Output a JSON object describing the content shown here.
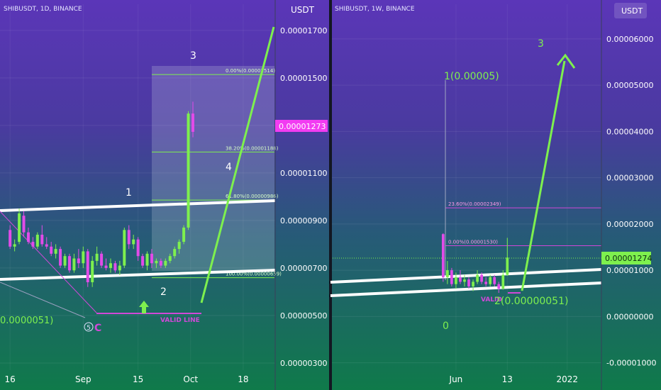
{
  "chart_data": [
    {
      "type": "candlestick",
      "title": "SHIBUSDT, 1D, BINANCE",
      "unit": "USDT",
      "y_ticks": [
        "0.00001700",
        "0.00001500",
        "0.00001300",
        "0.00001100",
        "0.00000900",
        "0.00000700",
        "0.00000500",
        "0.00000300"
      ],
      "y_tick_values": [
        1.7e-05,
        1.5e-05,
        1.3e-05,
        1.1e-05,
        9e-06,
        7e-06,
        5e-06,
        3e-06
      ],
      "ylim": [
        2.7e-06,
        1.81e-05
      ],
      "x_ticks": [
        "16",
        "Sep",
        "15",
        "Oct",
        "18"
      ],
      "x_tick_pos": [
        0,
        16,
        28,
        39.5,
        51
      ],
      "x_range": [
        -2.2,
        58
      ],
      "last_price": "0.00001273",
      "candles": [
        {
          "o": 8.6e-06,
          "h": 8.8e-06,
          "l": 7.8e-06,
          "c": 7.9e-06
        },
        {
          "o": 7.9e-06,
          "h": 8.2e-06,
          "l": 7.7e-06,
          "c": 8e-06
        },
        {
          "o": 8.1e-06,
          "h": 9.5e-06,
          "l": 8e-06,
          "c": 9.3e-06
        },
        {
          "o": 9.2e-06,
          "h": 9.4e-06,
          "l": 8.3e-06,
          "c": 8.5e-06
        },
        {
          "o": 8.5e-06,
          "h": 8.7e-06,
          "l": 8e-06,
          "c": 8.1e-06
        },
        {
          "o": 8.1e-06,
          "h": 8.3e-06,
          "l": 7.8e-06,
          "c": 7.9e-06
        },
        {
          "o": 7.9e-06,
          "h": 8.5e-06,
          "l": 7.8e-06,
          "c": 8.4e-06
        },
        {
          "o": 8.4e-06,
          "h": 8.8e-06,
          "l": 7.9e-06,
          "c": 8e-06
        },
        {
          "o": 8e-06,
          "h": 8.3e-06,
          "l": 7.8e-06,
          "c": 7.9e-06
        },
        {
          "o": 7.9e-06,
          "h": 8.1e-06,
          "l": 7.5e-06,
          "c": 7.6e-06
        },
        {
          "o": 7.6e-06,
          "h": 8e-06,
          "l": 7.4e-06,
          "c": 7.8e-06
        },
        {
          "o": 7.8e-06,
          "h": 7.9e-06,
          "l": 7e-06,
          "c": 7.1e-06
        },
        {
          "o": 7.1e-06,
          "h": 7.6e-06,
          "l": 7e-06,
          "c": 7.5e-06
        },
        {
          "o": 7.5e-06,
          "h": 7.6e-06,
          "l": 6.8e-06,
          "c": 6.9e-06
        },
        {
          "o": 6.9e-06,
          "h": 7.6e-06,
          "l": 6.8e-06,
          "c": 7.4e-06
        },
        {
          "o": 7.4e-06,
          "h": 7.8e-06,
          "l": 7e-06,
          "c": 7.2e-06
        },
        {
          "o": 7.2e-06,
          "h": 7.9e-06,
          "l": 7e-06,
          "c": 7.7e-06
        },
        {
          "o": 7.7e-06,
          "h": 7.8e-06,
          "l": 6.2e-06,
          "c": 6.4e-06
        },
        {
          "o": 6.4e-06,
          "h": 7.5e-06,
          "l": 6.2e-06,
          "c": 7.3e-06
        },
        {
          "o": 7.3e-06,
          "h": 7.9e-06,
          "l": 7.1e-06,
          "c": 7.6e-06
        },
        {
          "o": 7.6e-06,
          "h": 7.7e-06,
          "l": 7e-06,
          "c": 7.1e-06
        },
        {
          "o": 7.1e-06,
          "h": 7.4e-06,
          "l": 6.9e-06,
          "c": 7e-06
        },
        {
          "o": 7e-06,
          "h": 7.4e-06,
          "l": 6.8e-06,
          "c": 7.2e-06
        },
        {
          "o": 7.2e-06,
          "h": 7.3e-06,
          "l": 6.8e-06,
          "c": 6.9e-06
        },
        {
          "o": 6.9e-06,
          "h": 7.3e-06,
          "l": 6.7e-06,
          "c": 7.1e-06
        },
        {
          "o": 7.1e-06,
          "h": 8.7e-06,
          "l": 7e-06,
          "c": 8.6e-06
        },
        {
          "o": 8.6e-06,
          "h": 8.8e-06,
          "l": 7.8e-06,
          "c": 8e-06
        },
        {
          "o": 8e-06,
          "h": 8.4e-06,
          "l": 7.8e-06,
          "c": 8.2e-06
        },
        {
          "o": 8.2e-06,
          "h": 8.3e-06,
          "l": 7.3e-06,
          "c": 7.5e-06
        },
        {
          "o": 7.5e-06,
          "h": 7.6e-06,
          "l": 7e-06,
          "c": 7.1e-06
        },
        {
          "o": 7.1e-06,
          "h": 7.7e-06,
          "l": 6.9e-06,
          "c": 7.6e-06
        },
        {
          "o": 7.6e-06,
          "h": 7.8e-06,
          "l": 7e-06,
          "c": 7.2e-06
        },
        {
          "o": 7.2e-06,
          "h": 7.4e-06,
          "l": 7e-06,
          "c": 7.3e-06
        },
        {
          "o": 7.3e-06,
          "h": 7.4e-06,
          "l": 7e-06,
          "c": 7.1e-06
        },
        {
          "o": 7.1e-06,
          "h": 7.4e-06,
          "l": 7e-06,
          "c": 7.3e-06
        },
        {
          "o": 7.3e-06,
          "h": 7.6e-06,
          "l": 7.2e-06,
          "c": 7.5e-06
        },
        {
          "o": 7.5e-06,
          "h": 7.9e-06,
          "l": 7.4e-06,
          "c": 7.8e-06
        },
        {
          "o": 7.8e-06,
          "h": 8.2e-06,
          "l": 7.6e-06,
          "c": 8.1e-06
        },
        {
          "o": 8.1e-06,
          "h": 8.8e-06,
          "l": 8e-06,
          "c": 8.7e-06
        },
        {
          "o": 8.7e-06,
          "h": 1.36e-05,
          "l": 8.6e-06,
          "c": 1.35e-05
        },
        {
          "o": 1.35e-05,
          "h": 1.4e-05,
          "l": 1.25e-05,
          "c": 1.273e-05
        }
      ],
      "fib_levels": [
        {
          "label": "0.00%(0.00001514)",
          "value": 1.514e-05
        },
        {
          "label": "38.20%(0.00001188)",
          "value": 1.188e-05
        },
        {
          "label": "61.80%(0.00000986)",
          "value": 9.86e-06
        },
        {
          "label": "100.00%(0.00000659)",
          "value": 6.59e-06
        }
      ],
      "annotations": {
        "wave_1": "1",
        "wave_2": "2",
        "wave_3": "3",
        "wave_4": "4",
        "wave_5c": "5",
        "wave_5c_suffix": "C",
        "left_price": "0.0000051)",
        "valid_line": "VALID LINE"
      }
    },
    {
      "type": "candlestick",
      "title": "SHIBUSDT, 1W, BINANCE",
      "unit": "USDT",
      "y_ticks": [
        "0.00006000",
        "0.00005000",
        "0.00004000",
        "0.00003000",
        "0.00002000",
        "0.00001000",
        "0.00000000",
        "-0.00001000"
      ],
      "y_tick_values": [
        6e-05,
        5e-05,
        4e-05,
        3e-05,
        2e-05,
        1e-05,
        0,
        -1e-05
      ],
      "ylim": [
        -1.16e-05,
        6.75e-05
      ],
      "x_ticks": [
        "Jun",
        "13",
        "2022"
      ],
      "x_tick_pos": [
        3,
        15,
        29
      ],
      "x_range": [
        -26,
        37
      ],
      "last_price": "0.00001274",
      "candles": [
        {
          "o": 1.78e-05,
          "h": 1.8e-05,
          "l": 7.5e-06,
          "c": 8.5e-06
        },
        {
          "o": 8.5e-06,
          "h": 1.2e-05,
          "l": 7e-06,
          "c": 1e-05
        },
        {
          "o": 1e-05,
          "h": 1.05e-05,
          "l": 6.5e-06,
          "c": 7e-06
        },
        {
          "o": 7e-06,
          "h": 9.5e-06,
          "l": 6e-06,
          "c": 8.5e-06
        },
        {
          "o": 8.5e-06,
          "h": 1e-05,
          "l": 7e-06,
          "c": 7.5e-06
        },
        {
          "o": 7.5e-06,
          "h": 9e-06,
          "l": 6.5e-06,
          "c": 8e-06
        },
        {
          "o": 8e-06,
          "h": 8.5e-06,
          "l": 6e-06,
          "c": 6.5e-06
        },
        {
          "o": 6.5e-06,
          "h": 8e-06,
          "l": 5.5e-06,
          "c": 7.5e-06
        },
        {
          "o": 7.5e-06,
          "h": 1e-05,
          "l": 7e-06,
          "c": 9e-06
        },
        {
          "o": 9e-06,
          "h": 9.5e-06,
          "l": 7e-06,
          "c": 7.5e-06
        },
        {
          "o": 7.5e-06,
          "h": 8.5e-06,
          "l": 6.5e-06,
          "c": 7e-06
        },
        {
          "o": 7e-06,
          "h": 9e-06,
          "l": 6.5e-06,
          "c": 8.5e-06
        },
        {
          "o": 8.5e-06,
          "h": 9e-06,
          "l": 6.5e-06,
          "c": 7e-06
        },
        {
          "o": 7e-06,
          "h": 7.5e-06,
          "l": 5.1e-06,
          "c": 6e-06
        },
        {
          "o": 6e-06,
          "h": 1e-05,
          "l": 5.8e-06,
          "c": 9e-06
        },
        {
          "o": 9e-06,
          "h": 1.7e-05,
          "l": 8.8e-06,
          "c": 1.274e-05
        }
      ],
      "fib_levels": [
        {
          "label": "23.60%(0.00002349)",
          "value": 2.349e-05
        },
        {
          "label": "0.00%(0.00001530)",
          "value": 1.53e-05
        }
      ],
      "annotations": {
        "wave_1": "1(0.00005)",
        "wave_2": "2(0.00000051)",
        "wave_3": "3",
        "wave_0": "0",
        "valid": "VALID"
      }
    }
  ]
}
